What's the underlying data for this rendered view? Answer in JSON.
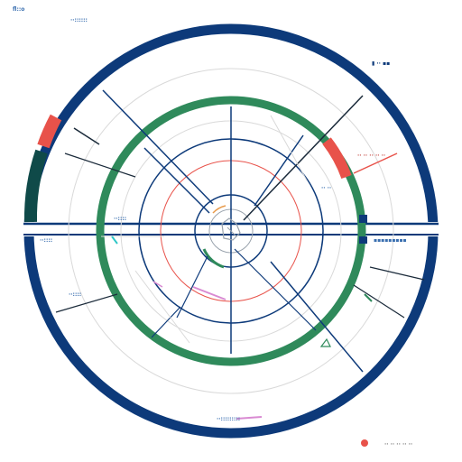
{
  "colors": {
    "navy": "#0d3a7a",
    "green": "#2f8a5b",
    "red": "#e8524a",
    "dark_teal": "#0f4a49",
    "light_grey": "#d9d9d9",
    "mid_grey": "#9aa3ad",
    "label_blue": "#3a6fb0",
    "pink": "#d98ad2",
    "cyan": "#2fc7c7",
    "white": "#ffffff",
    "bg": "#ffffff"
  },
  "labels": [
    {
      "id": "top-left-caption",
      "text": "fl::o",
      "color": "#3a6fb0"
    },
    {
      "id": "top-left-small",
      "text": "··::::::",
      "color": "#3a6fb0"
    },
    {
      "id": "top-right-icons",
      "text": "▮ ·· ▪▪",
      "color": "#0d3a7a"
    },
    {
      "id": "right-upper",
      "text": "·· ·· ·· ·· ··",
      "color": "#c44a44"
    },
    {
      "id": "right-mid",
      "text": "·· ··",
      "color": "#3a6fb0"
    },
    {
      "id": "right-axis",
      "text": "▪▪▪▪▪▪▪▪▪",
      "color": "#3a6fb0"
    },
    {
      "id": "left-axis",
      "text": "··::::",
      "color": "#3a6fb0"
    },
    {
      "id": "left-mid",
      "text": "··::::",
      "color": "#3a6fb0"
    },
    {
      "id": "left-lower",
      "text": "··::::",
      "color": "#3a6fb0"
    },
    {
      "id": "bottom-center",
      "text": "··:::::::::",
      "color": "#3a6fb0"
    },
    {
      "id": "bottom-right",
      "text": "·· ·· ·· ·· ··",
      "color": "#7a7a7a"
    }
  ]
}
